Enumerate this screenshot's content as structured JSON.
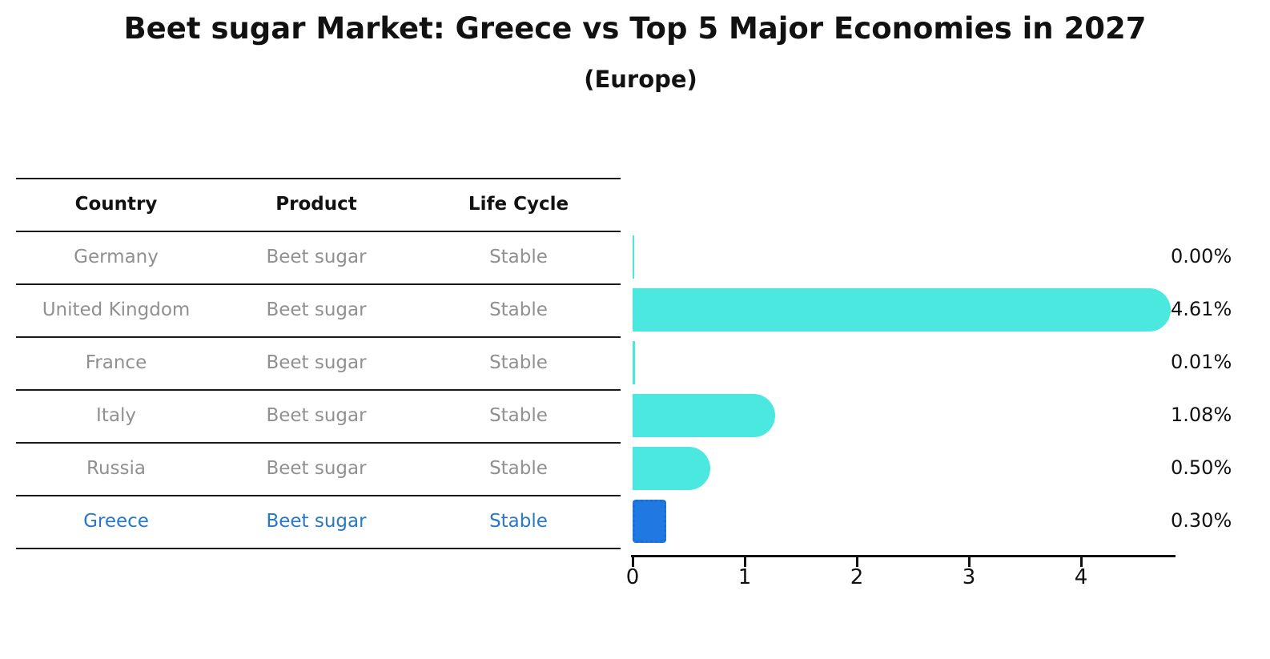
{
  "chart_data": {
    "type": "bar",
    "orientation": "horizontal",
    "title": "Beet sugar Market: Greece vs Top 5 Major Economies in 2027",
    "subtitle": "(Europe)",
    "grid": false,
    "legend_position": "none",
    "xlim": [
      0,
      4.84
    ],
    "x_ticks": [
      "0",
      "1",
      "2",
      "3",
      "4"
    ],
    "xlabel": "",
    "ylabel": "",
    "table_headers": [
      "Country",
      "Product",
      "Life Cycle"
    ],
    "categories": [
      "Germany",
      "United Kingdom",
      "France",
      "Italy",
      "Russia",
      "Greece"
    ],
    "values": [
      0.0,
      4.61,
      0.01,
      1.08,
      0.5,
      0.3
    ],
    "rows": [
      {
        "country": "Germany",
        "product": "Beet sugar",
        "life_cycle": "Stable",
        "value": 0.0,
        "value_label": "0.00%",
        "highlighted": false
      },
      {
        "country": "United Kingdom",
        "product": "Beet sugar",
        "life_cycle": "Stable",
        "value": 4.61,
        "value_label": "4.61%",
        "highlighted": false
      },
      {
        "country": "France",
        "product": "Beet sugar",
        "life_cycle": "Stable",
        "value": 0.01,
        "value_label": "0.01%",
        "highlighted": false
      },
      {
        "country": "Italy",
        "product": "Beet sugar",
        "life_cycle": "Stable",
        "value": 1.08,
        "value_label": "1.08%",
        "highlighted": false
      },
      {
        "country": "Russia",
        "product": "Beet sugar",
        "life_cycle": "Stable",
        "value": 0.5,
        "value_label": "0.50%",
        "highlighted": false
      },
      {
        "country": "Greece",
        "product": "Beet sugar",
        "life_cycle": "Stable",
        "value": 0.3,
        "value_label": "0.30%",
        "highlighted": true
      }
    ],
    "colors": {
      "bar": "#4BE8E0",
      "highlight_bar": "#1F79E0",
      "highlight_border": "#1A6FD4",
      "highlight_text": "#2878C8",
      "row_text": "#909090",
      "header_text": "#111111",
      "axis": "#111111",
      "background": "#FFFFFF"
    }
  }
}
